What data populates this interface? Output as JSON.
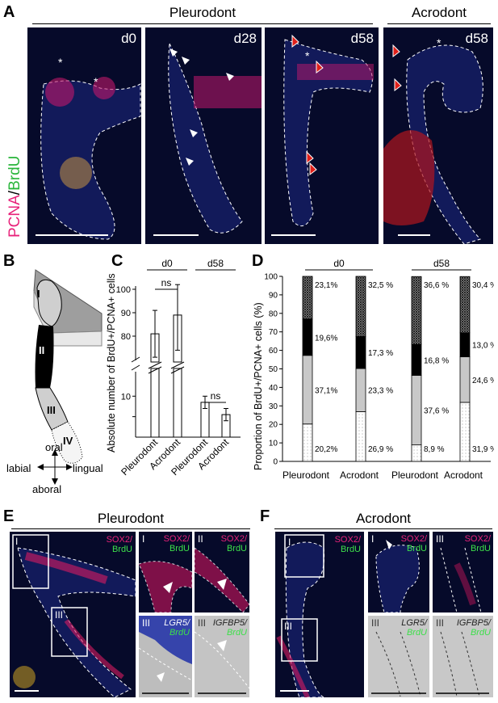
{
  "panel_a": {
    "letter": "A",
    "group_left": "Pleurodont",
    "group_right": "Acrodont",
    "stain_pcna": "PCNA",
    "stain_slash": "/",
    "stain_brdu": "BrdU",
    "tiles": [
      "d0",
      "d28",
      "d58",
      "d58"
    ],
    "colors": {
      "pcna": "#e8227a",
      "brdu": "#3de04a",
      "nuclei": "#1a2fb5"
    }
  },
  "panel_b": {
    "letter": "B",
    "zones": [
      "I",
      "II",
      "III",
      "IV"
    ],
    "oral": "oral",
    "aboral": "aboral",
    "labial": "labial",
    "lingual": "lingual"
  },
  "panel_c": {
    "letter": "C",
    "group_d0": "d0",
    "group_d58": "d58",
    "sig1": "ns",
    "sig2": "ns"
  },
  "panel_d": {
    "letter": "D",
    "group_d0": "d0",
    "group_d58": "d58"
  },
  "panel_e": {
    "letter": "E",
    "title": "Pleurodont",
    "main_label_1": "SOX2/",
    "main_label_2": "BrdU",
    "box_labels": [
      "I",
      "III"
    ],
    "insets": [
      {
        "roman": "I",
        "l1": "SOX2/",
        "l2": "BrdU"
      },
      {
        "roman": "II",
        "l1": "SOX2/",
        "l2": "BrdU"
      },
      {
        "roman": "III",
        "l1": "LGR5/",
        "l2": "BrdU"
      },
      {
        "roman": "III",
        "l1": "IGFBP5/",
        "l2": "BrdU"
      }
    ]
  },
  "panel_f": {
    "letter": "F",
    "title": "Acrodont",
    "main_label_1": "SOX2/",
    "main_label_2": "BrdU",
    "box_labels": [
      "I",
      "III"
    ],
    "insets": [
      {
        "roman": "I",
        "l1": "SOX2/",
        "l2": "BrdU"
      },
      {
        "roman": "III",
        "l1": "SOX2/",
        "l2": "BrdU"
      },
      {
        "roman": "III",
        "l1": "LGR5/",
        "l2": "BrdU"
      },
      {
        "roman": "III",
        "l1": "IGFBP5/",
        "l2": "BrdU"
      }
    ]
  },
  "chart_data": [
    {
      "type": "bar",
      "panel": "C",
      "ylabel": "Absolute number of BrdU+/PCNA+ cells",
      "categories": [
        "Pleurodont",
        "Acrodont",
        "Pleurodont",
        "Acrodont"
      ],
      "groups": [
        "d0",
        "d0",
        "d58",
        "d58"
      ],
      "values": [
        81,
        89,
        8.5,
        5.5
      ],
      "error_low": [
        71,
        74,
        7,
        4
      ],
      "error_high": [
        91,
        102,
        10,
        7
      ],
      "y_ticks_upper": [
        80,
        90,
        100
      ],
      "y_ticks_lower": [
        10,
        5
      ],
      "axis_break": true,
      "annotations": [
        "ns",
        "ns"
      ]
    },
    {
      "type": "bar",
      "stacked": true,
      "panel": "D",
      "ylabel": "Proportion of BrdU+/PCNA+ cells (%)",
      "categories": [
        "Pleurodont",
        "Acrodont",
        "Pleurodont",
        "Acrodont"
      ],
      "groups": [
        "d0",
        "d0",
        "d58",
        "d58"
      ],
      "ylim": [
        0,
        100
      ],
      "y_ticks": [
        0,
        10,
        20,
        30,
        40,
        50,
        60,
        70,
        80,
        90,
        100
      ],
      "series": [
        {
          "name": "IV",
          "values": [
            20.2,
            26.9,
            8.9,
            31.9
          ],
          "labels": [
            "20,2%",
            "26,9 %",
            "8,9 %",
            "31,9 %"
          ],
          "color": "#f5f5f5"
        },
        {
          "name": "III",
          "values": [
            37.1,
            23.3,
            37.6,
            24.6
          ],
          "labels": [
            "37,1%",
            "23,3 %",
            "37,6 %",
            "24,6 %"
          ],
          "color": "#c8c8c8"
        },
        {
          "name": "II",
          "values": [
            19.6,
            17.3,
            16.8,
            13.0
          ],
          "labels": [
            "19,6%",
            "17,3 %",
            "16,8 %",
            "13,0 %"
          ],
          "color": "#000000"
        },
        {
          "name": "I",
          "values": [
            23.1,
            32.5,
            36.6,
            30.4
          ],
          "labels": [
            "23,1%",
            "32,5 %",
            "36,6 %",
            "30,4 %"
          ],
          "color": "#909090"
        }
      ]
    }
  ]
}
